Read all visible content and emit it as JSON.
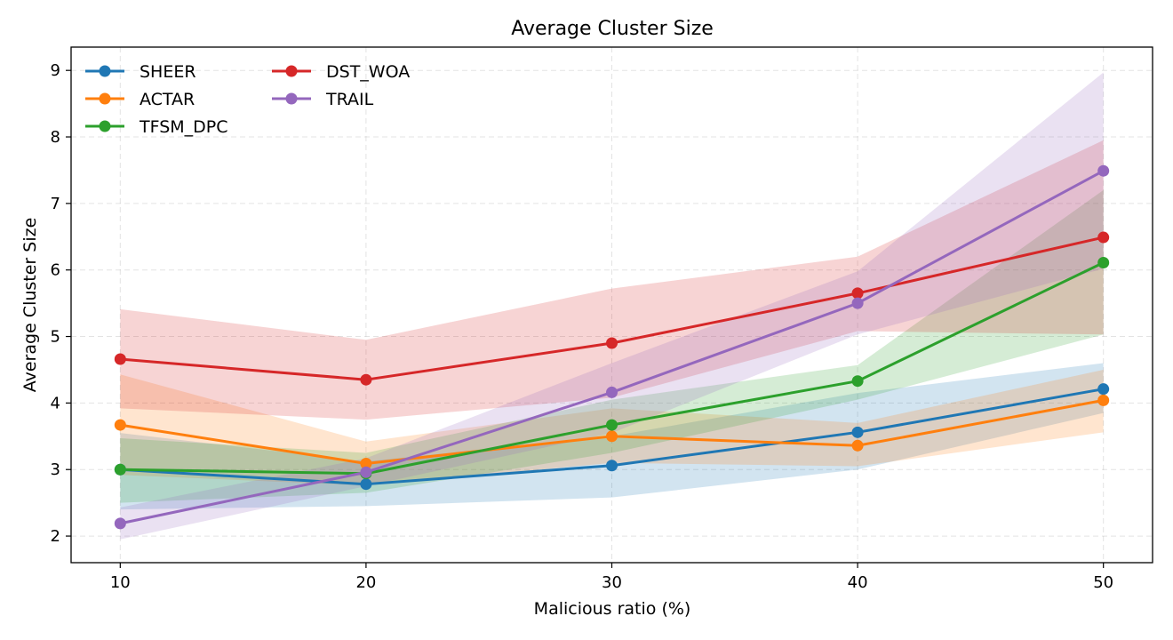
{
  "chart_data": {
    "type": "line",
    "title": "Average Cluster Size",
    "xlabel": "Malicious ratio (%)",
    "ylabel": "Average Cluster Size",
    "x": [
      10,
      20,
      30,
      40,
      50
    ],
    "xlim": [
      8,
      52
    ],
    "ylim": [
      1.6,
      9.35
    ],
    "xticks": [
      10,
      20,
      30,
      40,
      50
    ],
    "yticks": [
      2,
      3,
      4,
      5,
      6,
      7,
      8,
      9
    ],
    "grid": true,
    "legend": {
      "position": "top-left",
      "columns": 2
    },
    "series": [
      {
        "name": "SHEER",
        "color": "#1f77b4",
        "values": [
          3.0,
          2.78,
          3.06,
          3.56,
          4.21
        ],
        "lower": [
          2.4,
          2.45,
          2.58,
          3.0,
          3.85
        ],
        "upper": [
          3.55,
          3.12,
          3.5,
          4.15,
          4.6
        ]
      },
      {
        "name": "ACTAR",
        "color": "#ff7f0e",
        "values": [
          3.67,
          3.09,
          3.5,
          3.36,
          4.04
        ],
        "lower": [
          2.92,
          2.76,
          3.1,
          3.05,
          3.56
        ],
        "upper": [
          4.43,
          3.42,
          3.92,
          3.7,
          4.5
        ]
      },
      {
        "name": "TFSM_DPC",
        "color": "#2ca02c",
        "values": [
          3.0,
          2.94,
          3.67,
          4.33,
          6.11
        ],
        "lower": [
          2.5,
          2.65,
          3.25,
          4.05,
          5.03
        ],
        "upper": [
          3.47,
          3.25,
          4.05,
          4.57,
          7.2
        ]
      },
      {
        "name": "DST_WOA",
        "color": "#d62728",
        "values": [
          4.66,
          4.35,
          4.9,
          5.65,
          6.49
        ],
        "lower": [
          3.92,
          3.75,
          4.08,
          5.08,
          5.03
        ],
        "upper": [
          5.41,
          4.95,
          5.72,
          6.2,
          7.95
        ]
      },
      {
        "name": "TRAIL",
        "color": "#9467bd",
        "values": [
          2.19,
          2.96,
          4.16,
          5.5,
          7.49
        ],
        "lower": [
          1.95,
          2.75,
          3.55,
          5.03,
          6.02
        ],
        "upper": [
          2.43,
          3.17,
          4.6,
          5.98,
          8.97
        ]
      }
    ]
  }
}
